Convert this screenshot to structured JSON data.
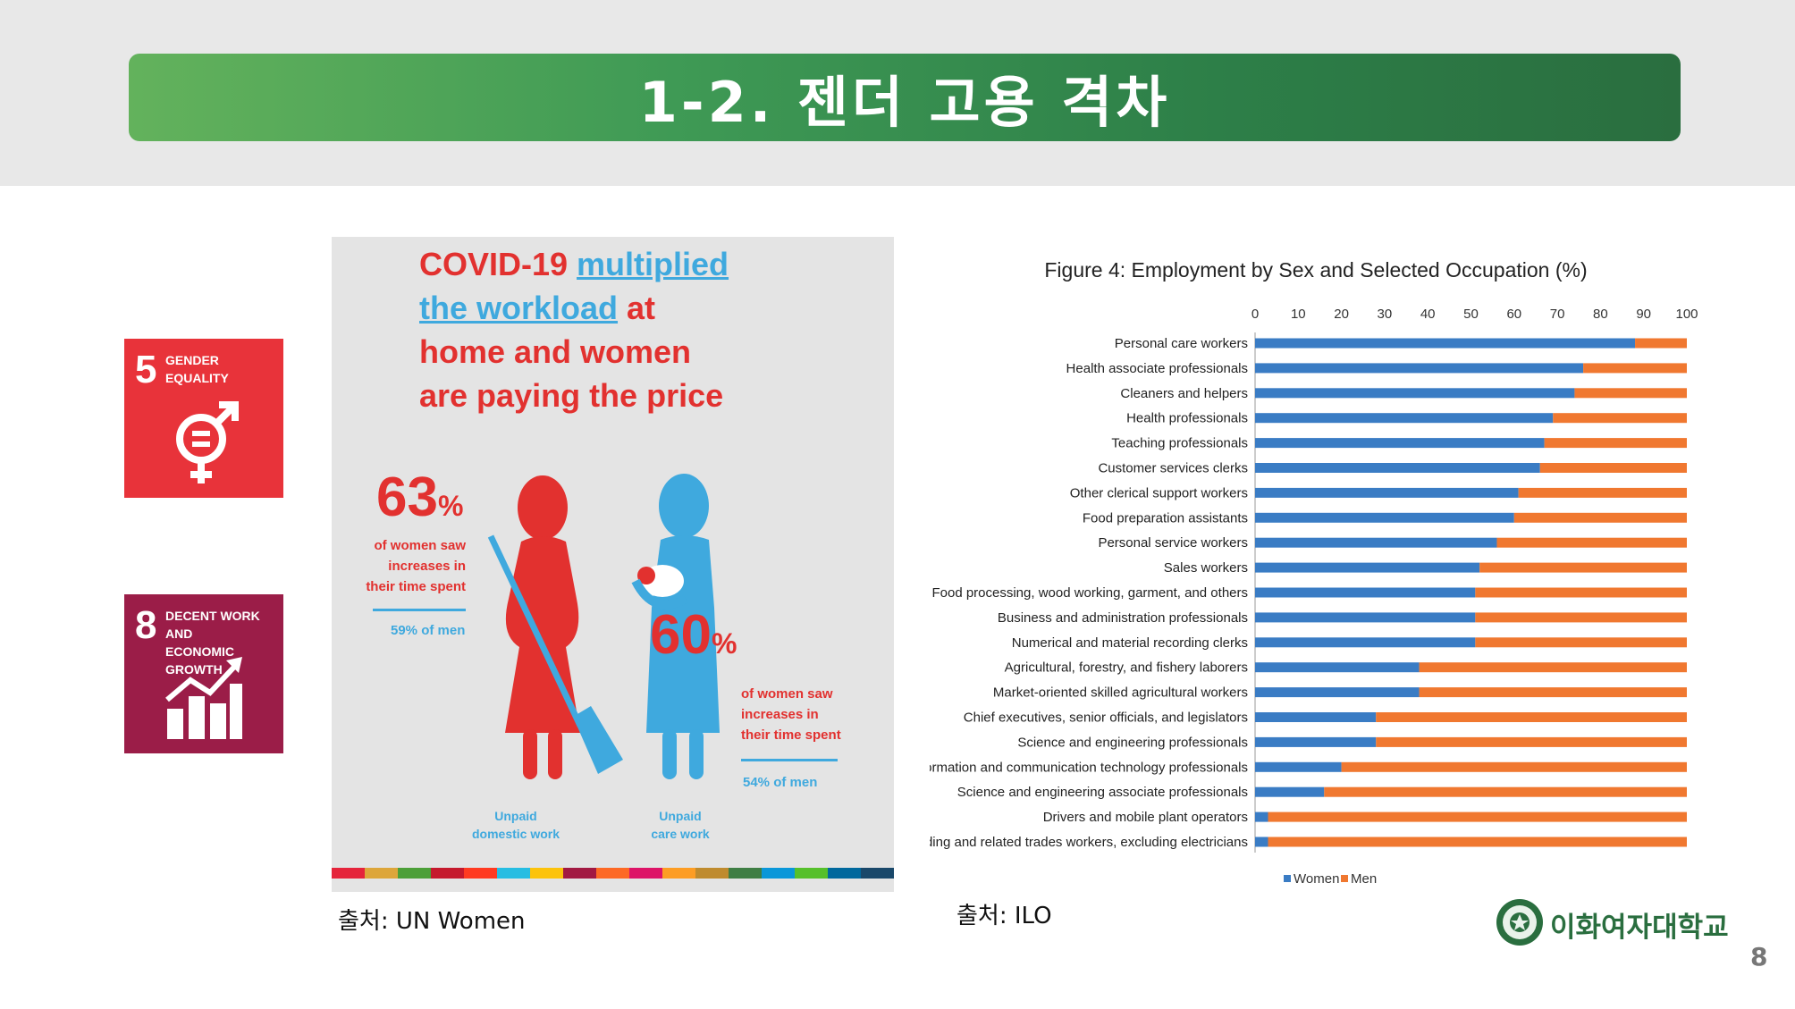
{
  "title": "1-2. 젠더 고용 격차",
  "sdg_cards": [
    {
      "number": "5",
      "label_line1": "GENDER",
      "label_line2": "EQUALITY",
      "color": "#e8333a",
      "icon": "gender-equality-icon"
    },
    {
      "number": "8",
      "label_line1": "DECENT WORK AND",
      "label_line2": "ECONOMIC GROWTH",
      "color": "#9b1d48",
      "icon": "growth-chart-icon"
    }
  ],
  "infographic": {
    "headline_1": "COVID-19 ",
    "headline_2": "multiplied",
    "headline_3": "the workload",
    "headline_4": " at",
    "headline_5": "home and women",
    "headline_6": "are paying the price",
    "women_domestic_pct": "63",
    "women_domestic_note": [
      "of women saw",
      "increases in",
      "their time spent"
    ],
    "men_domestic": "59% of men",
    "women_care_pct": "60",
    "women_care_note": [
      "of women saw",
      "increases in",
      "their time spent"
    ],
    "men_care": "54% of men",
    "caption_domestic": [
      "Unpaid",
      "domestic work"
    ],
    "caption_care": [
      "Unpaid",
      "care work"
    ],
    "pct_sign": "%"
  },
  "source_left": "출처: UN Women",
  "source_right": "출처: ILO",
  "logo_text": "이화여자대학교",
  "page_number": "8",
  "chart_data": {
    "type": "bar",
    "stacked": true,
    "orientation": "horizontal",
    "title": "Figure 4: Employment by Sex and Selected Occupation (%)",
    "xticks": [
      "0",
      "10",
      "20",
      "30",
      "40",
      "50",
      "60",
      "70",
      "80",
      "90",
      "100"
    ],
    "xlim": [
      0,
      100
    ],
    "categories": [
      "Personal care workers",
      "Health associate professionals",
      "Cleaners and helpers",
      "Health professionals",
      "Teaching professionals",
      "Customer services clerks",
      "Other clerical support workers",
      "Food preparation assistants",
      "Personal service workers",
      "Sales workers",
      "Food processing, wood working, garment, and others",
      "Business and administration professionals",
      "Numerical and material recording clerks",
      "Agricultural, forestry, and fishery laborers",
      "Market-oriented skilled agricultural workers",
      "Chief executives, senior officials, and legislators",
      "Science and engineering professionals",
      "Information and communication technology professionals",
      "Science and engineering associate professionals",
      "Drivers and mobile plant operators",
      "Building and related trades workers, excluding electricians"
    ],
    "series": [
      {
        "name": "Women",
        "color": "#3a7cc4",
        "values": [
          88,
          76,
          74,
          69,
          67,
          66,
          61,
          60,
          56,
          52,
          51,
          51,
          51,
          38,
          38,
          28,
          28,
          20,
          16,
          3,
          3
        ]
      },
      {
        "name": "Men",
        "color": "#f07830",
        "values": [
          12,
          24,
          26,
          31,
          33,
          34,
          39,
          40,
          44,
          48,
          49,
          49,
          49,
          62,
          62,
          72,
          72,
          80,
          84,
          97,
          97
        ]
      }
    ],
    "legend": "bottom",
    "grid": false
  }
}
